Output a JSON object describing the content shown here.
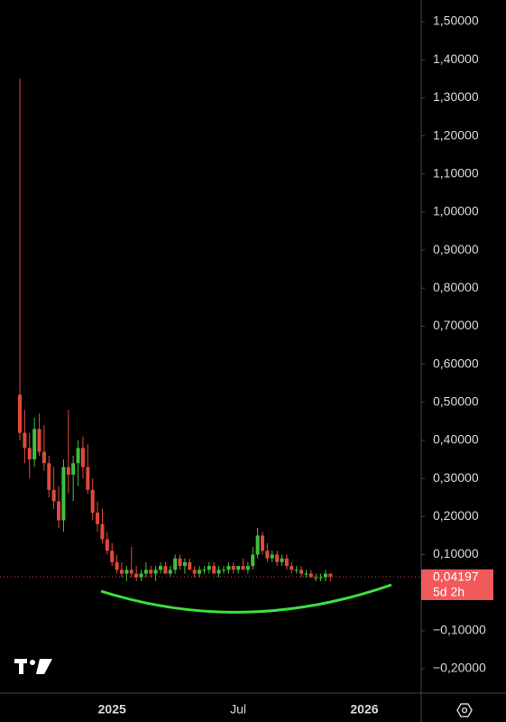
{
  "chart_data": {
    "type": "candlestick",
    "categories": [
      null,
      null,
      null,
      null,
      null,
      null,
      null,
      null,
      null,
      null,
      null,
      null,
      null,
      null,
      null,
      null,
      null,
      null,
      null,
      "2025",
      null,
      null,
      null,
      null,
      null,
      null,
      null,
      null,
      null,
      null,
      null,
      null,
      null,
      null,
      null,
      null,
      null,
      null,
      null,
      null,
      null,
      null,
      null,
      null,
      null,
      "Jul",
      null,
      null,
      null,
      null,
      null,
      null,
      null,
      null,
      null,
      null,
      null,
      null,
      null,
      null,
      null,
      null,
      null,
      null,
      null,
      null,
      null,
      null,
      null,
      null,
      null,
      "2026",
      null,
      null,
      null,
      null,
      null,
      null,
      null,
      null
    ],
    "open": [
      0.52,
      0.42,
      0.38,
      0.35,
      0.43,
      0.37,
      0.34,
      0.27,
      0.24,
      0.19,
      0.33,
      0.31,
      0.34,
      0.38,
      0.33,
      0.27,
      0.21,
      0.18,
      0.14,
      0.11,
      0.08,
      0.06,
      0.05,
      0.06,
      0.05,
      0.04,
      0.05,
      0.06,
      0.05,
      0.06,
      0.07,
      0.05,
      0.06,
      0.09,
      0.07,
      0.08,
      0.06,
      0.05,
      0.06,
      0.06,
      0.07,
      0.05,
      0.06,
      0.06,
      0.07,
      0.06,
      0.07,
      0.06,
      0.07,
      0.1,
      0.15,
      0.11,
      0.09,
      0.1,
      0.08,
      0.09,
      0.07,
      0.06,
      0.06,
      0.05,
      0.05,
      0.04,
      0.04,
      0.04,
      0.05,
      null,
      null,
      null,
      null,
      null,
      null,
      null,
      null,
      null,
      null,
      null,
      null,
      null,
      null,
      null
    ],
    "high": [
      1.35,
      0.48,
      0.42,
      0.46,
      0.47,
      0.44,
      0.36,
      0.33,
      0.28,
      0.35,
      0.48,
      0.36,
      0.4,
      0.41,
      0.39,
      0.3,
      0.24,
      0.22,
      0.16,
      0.13,
      0.1,
      0.08,
      0.07,
      0.12,
      0.07,
      0.06,
      0.08,
      0.07,
      0.07,
      0.08,
      0.08,
      0.07,
      0.1,
      0.1,
      0.09,
      0.09,
      0.07,
      0.07,
      0.07,
      0.08,
      0.08,
      0.07,
      0.07,
      0.08,
      0.08,
      0.07,
      0.09,
      0.08,
      0.12,
      0.17,
      0.16,
      0.13,
      0.11,
      0.11,
      0.1,
      0.1,
      0.08,
      0.07,
      0.07,
      0.06,
      0.06,
      0.05,
      0.05,
      0.06,
      0.05,
      null,
      null,
      null,
      null,
      null,
      null,
      null,
      null,
      null,
      null,
      null,
      null,
      null,
      null,
      null
    ],
    "low": [
      0.4,
      0.34,
      0.3,
      0.33,
      0.36,
      0.32,
      0.25,
      0.22,
      0.17,
      0.16,
      0.26,
      0.24,
      0.28,
      0.3,
      0.26,
      0.19,
      0.16,
      0.13,
      0.1,
      0.07,
      0.05,
      0.04,
      0.03,
      0.04,
      0.03,
      0.03,
      0.04,
      0.04,
      0.03,
      0.05,
      0.05,
      0.04,
      0.05,
      0.06,
      0.05,
      0.06,
      0.04,
      0.04,
      0.05,
      0.05,
      0.05,
      0.04,
      0.05,
      0.05,
      0.05,
      0.05,
      0.06,
      0.05,
      0.06,
      0.09,
      0.1,
      0.08,
      0.08,
      0.07,
      0.07,
      0.06,
      0.05,
      0.05,
      0.04,
      0.04,
      0.04,
      0.03,
      0.03,
      0.03,
      0.03,
      null,
      null,
      null,
      null,
      null,
      null,
      null,
      null,
      null,
      null,
      null,
      null,
      null,
      null,
      null
    ],
    "close": [
      0.42,
      0.38,
      0.35,
      0.43,
      0.37,
      0.34,
      0.27,
      0.24,
      0.19,
      0.33,
      0.31,
      0.34,
      0.38,
      0.33,
      0.27,
      0.21,
      0.18,
      0.14,
      0.11,
      0.08,
      0.06,
      0.05,
      0.06,
      0.05,
      0.04,
      0.05,
      0.06,
      0.05,
      0.06,
      0.07,
      0.05,
      0.06,
      0.09,
      0.07,
      0.08,
      0.06,
      0.05,
      0.06,
      0.06,
      0.07,
      0.05,
      0.06,
      0.06,
      0.07,
      0.06,
      0.07,
      0.06,
      0.07,
      0.1,
      0.15,
      0.11,
      0.09,
      0.1,
      0.08,
      0.09,
      0.07,
      0.06,
      0.06,
      0.05,
      0.05,
      0.04,
      0.04,
      0.04,
      0.05,
      0.04197,
      null,
      null,
      null,
      null,
      null,
      null,
      null,
      null,
      null,
      null,
      null,
      null,
      null,
      null,
      null
    ],
    "up_color": "#3fbf3f",
    "down_color": "#e0493a",
    "ylim": [
      -0.264,
      1.557
    ],
    "yticks": [
      {
        "value": 1.5,
        "label": "1,50000"
      },
      {
        "value": 1.4,
        "label": "1,40000"
      },
      {
        "value": 1.3,
        "label": "1,30000"
      },
      {
        "value": 1.2,
        "label": "1,20000"
      },
      {
        "value": 1.1,
        "label": "1,10000"
      },
      {
        "value": 1.0,
        "label": "1,00000"
      },
      {
        "value": 0.9,
        "label": "0,90000"
      },
      {
        "value": 0.8,
        "label": "0,80000"
      },
      {
        "value": 0.7,
        "label": "0,70000"
      },
      {
        "value": 0.6,
        "label": "0,60000"
      },
      {
        "value": 0.5,
        "label": "0,50000"
      },
      {
        "value": 0.4,
        "label": "0,40000"
      },
      {
        "value": 0.3,
        "label": "0,30000"
      },
      {
        "value": 0.2,
        "label": "0,20000"
      },
      {
        "value": 0.1,
        "label": "0,10000"
      },
      {
        "value": -0.1,
        "label": "−0,10000"
      },
      {
        "value": -0.2,
        "label": "−0,20000"
      }
    ],
    "last_price": {
      "value": 0.04197,
      "label": "0,04197"
    },
    "countdown": "5d 2h"
  }
}
